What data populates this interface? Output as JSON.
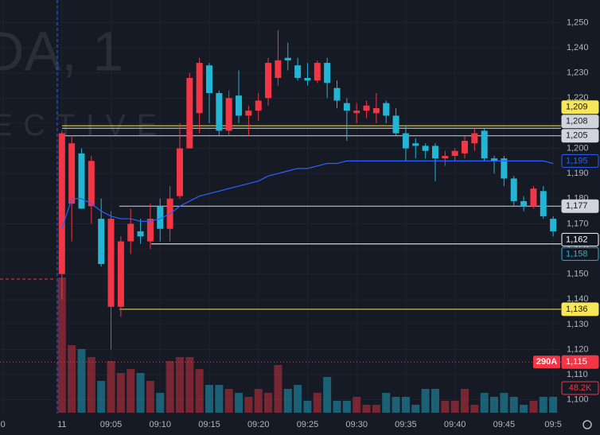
{
  "chart_data": {
    "type": "candlestick",
    "watermark": [
      "DA, 1",
      "ECTIVE"
    ],
    "up_color": "#f23645",
    "down_color": "#22b5d4",
    "ma_color": "#2962ff",
    "x": [
      0,
      1,
      2,
      3,
      4,
      5,
      6,
      7,
      8,
      9,
      10,
      11,
      12,
      13,
      14,
      15,
      16,
      17,
      18,
      19,
      20,
      21,
      22,
      23,
      24,
      25,
      26,
      27,
      28,
      29,
      30,
      31,
      32,
      33,
      34,
      35,
      36,
      37,
      38,
      39,
      40,
      41,
      42,
      43,
      44,
      45,
      46,
      47,
      48,
      49,
      50
    ],
    "open": [
      1150,
      1178,
      1198,
      1177,
      1172,
      1137,
      1137,
      1163,
      1167,
      1163,
      1177,
      1168,
      1181,
      1200,
      1214,
      1233,
      1222,
      1207,
      1221,
      1213,
      1215,
      1220,
      1228,
      1236,
      1233,
      1228,
      1227,
      1234,
      1224,
      1218,
      1214,
      1215,
      1214,
      1218,
      1213,
      1206,
      1202,
      1201,
      1201,
      1196,
      1197,
      1198,
      1202,
      1207,
      1196,
      1196,
      1188,
      1179,
      1177,
      1183,
      1172
    ],
    "high": [
      1207,
      1205,
      1200,
      1197,
      1180,
      1175,
      1165,
      1176,
      1172,
      1178,
      1180,
      1185,
      1210,
      1230,
      1236,
      1234,
      1223,
      1223,
      1231,
      1217,
      1222,
      1236,
      1247,
      1242,
      1236,
      1234,
      1235,
      1236,
      1227,
      1220,
      1218,
      1219,
      1222,
      1219,
      1216,
      1209,
      1204,
      1202,
      1202,
      1199,
      1200,
      1205,
      1208,
      1208,
      1197,
      1197,
      1189,
      1181,
      1185,
      1185,
      1173
    ],
    "low": [
      1140,
      1163,
      1176,
      1170,
      1153,
      1120,
      1133,
      1158,
      1162,
      1160,
      1163,
      1163,
      1180,
      1200,
      1206,
      1210,
      1205,
      1205,
      1210,
      1205,
      1211,
      1217,
      1225,
      1231,
      1227,
      1225,
      1226,
      1220,
      1216,
      1203,
      1210,
      1212,
      1210,
      1210,
      1205,
      1195,
      1196,
      1196,
      1187,
      1193,
      1195,
      1196,
      1199,
      1195,
      1190,
      1185,
      1177,
      1175,
      1176,
      1172,
      1165
    ],
    "close": [
      1206,
      1202,
      1176,
      1195,
      1154,
      1172,
      1163,
      1170,
      1165,
      1172,
      1168,
      1180,
      1200,
      1228,
      1234,
      1222,
      1207,
      1220,
      1213,
      1215,
      1219,
      1234,
      1235,
      1235,
      1228,
      1227,
      1234,
      1226,
      1219,
      1215,
      1215,
      1217,
      1216,
      1213,
      1206,
      1200,
      1201,
      1199,
      1196,
      1197,
      1199,
      1203,
      1206,
      1196,
      1195,
      1188,
      1179,
      1177,
      1184,
      1173,
      1167
    ],
    "ma": [
      1168,
      1180,
      1180,
      1178,
      1175,
      1173,
      1172,
      1172,
      1171,
      1171,
      1172,
      1174,
      1177,
      1179,
      1181,
      1182,
      1183,
      1184,
      1185,
      1186,
      1187,
      1189,
      1190,
      1191,
      1192,
      1192,
      1193,
      1194,
      1194,
      1195,
      1195,
      1195,
      1195,
      1195,
      1195,
      1195,
      1195,
      1195,
      1195,
      1195,
      1195,
      1195,
      1195,
      1195,
      1195,
      1195,
      1195,
      1195,
      1195,
      1195,
      1194
    ],
    "volumes": [
      408,
      204,
      192,
      168,
      96,
      156,
      120,
      132,
      120,
      96,
      60,
      156,
      168,
      168,
      132,
      84,
      84,
      72,
      60,
      48,
      72,
      60,
      144,
      72,
      84,
      36,
      60,
      108,
      36,
      36,
      48,
      24,
      24,
      60,
      48,
      48,
      24,
      72,
      72,
      36,
      36,
      72,
      24,
      60,
      48,
      60,
      48,
      24,
      36,
      48,
      48.2
    ],
    "last_volume_label": "48.2K",
    "premarket_level": 1148,
    "xlim": [
      -6.3,
      50.8
    ],
    "ylim": [
      1086,
      1259
    ],
    "xticks": [
      {
        "value": -6,
        "label": "0"
      },
      {
        "value": 0,
        "label": "11"
      },
      {
        "value": 5,
        "label": "09:05"
      },
      {
        "value": 10,
        "label": "09:10"
      },
      {
        "value": 15,
        "label": "09:15"
      },
      {
        "value": 20,
        "label": "09:20"
      },
      {
        "value": 25,
        "label": "09:25"
      },
      {
        "value": 30,
        "label": "09:30"
      },
      {
        "value": 35,
        "label": "09:35"
      },
      {
        "value": 40,
        "label": "09:40"
      },
      {
        "value": 45,
        "label": "09:45"
      },
      {
        "value": 50,
        "label": "09:5"
      }
    ],
    "yticks": [
      {
        "value": 1100,
        "label": "1,100"
      },
      {
        "value": 1110,
        "label": "1,110"
      },
      {
        "value": 1120,
        "label": "1,120"
      },
      {
        "value": 1130,
        "label": "1,130"
      },
      {
        "value": 1140,
        "label": "1,140"
      },
      {
        "value": 1150,
        "label": "1,150"
      },
      {
        "value": 1160,
        "label": "1,160"
      },
      {
        "value": 1170,
        "label": "1,170"
      },
      {
        "value": 1180,
        "label": "1,180"
      },
      {
        "value": 1190,
        "label": "1,190"
      },
      {
        "value": 1200,
        "label": "1,200"
      },
      {
        "value": 1210,
        "label": "1,210"
      },
      {
        "value": 1220,
        "label": "1,220"
      },
      {
        "value": 1230,
        "label": "1,230"
      },
      {
        "value": 1240,
        "label": "1,240"
      },
      {
        "value": 1250,
        "label": "1,250"
      }
    ],
    "grid": true,
    "symbol_tag": "290A",
    "levels": [
      {
        "value": 1209,
        "label": "1,209",
        "color": "#f7e55a"
      },
      {
        "value": 1208,
        "label": "1,208",
        "color": "#d1d4dc"
      },
      {
        "value": 1205,
        "label": "1,205",
        "color": "#d1d4dc"
      },
      {
        "value": 1195,
        "label": "1,195",
        "color": "#2962ff"
      },
      {
        "value": 1177,
        "label": "1,177",
        "color": "#d1d4dc"
      },
      {
        "value": 1162,
        "label": "1,162",
        "color": "#ffffff"
      },
      {
        "value": 1158,
        "label": "1,158",
        "color": "#22b5d4"
      },
      {
        "value": 1136,
        "label": "1,136",
        "color": "#f7e55a"
      },
      {
        "value": 1115,
        "label": "1,115",
        "color": "#f23645"
      }
    ]
  }
}
